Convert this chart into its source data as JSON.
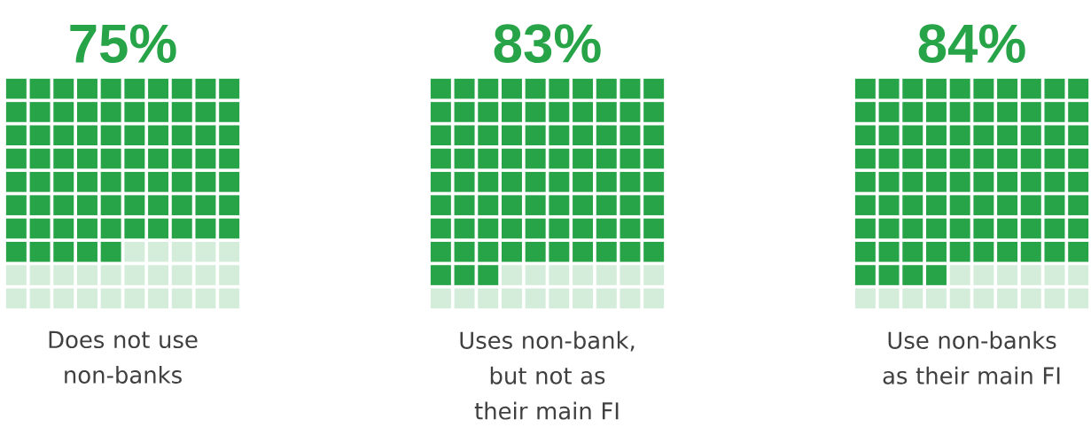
{
  "chart_data": [
    {
      "type": "other",
      "categories": [
        "Does not use non-banks"
      ],
      "values": [
        75
      ],
      "value_labels": [
        "75%"
      ],
      "color": "#27a348"
    },
    {
      "type": "other",
      "categories": [
        "Uses non-bank, but not as their main FI"
      ],
      "values": [
        83
      ],
      "value_labels": [
        "83%"
      ],
      "color": "#27a348"
    },
    {
      "type": "other",
      "categories": [
        "Use non-banks as their main FI"
      ],
      "values": [
        84
      ],
      "value_labels": [
        "84%"
      ],
      "color": "#27a348"
    }
  ]
}
